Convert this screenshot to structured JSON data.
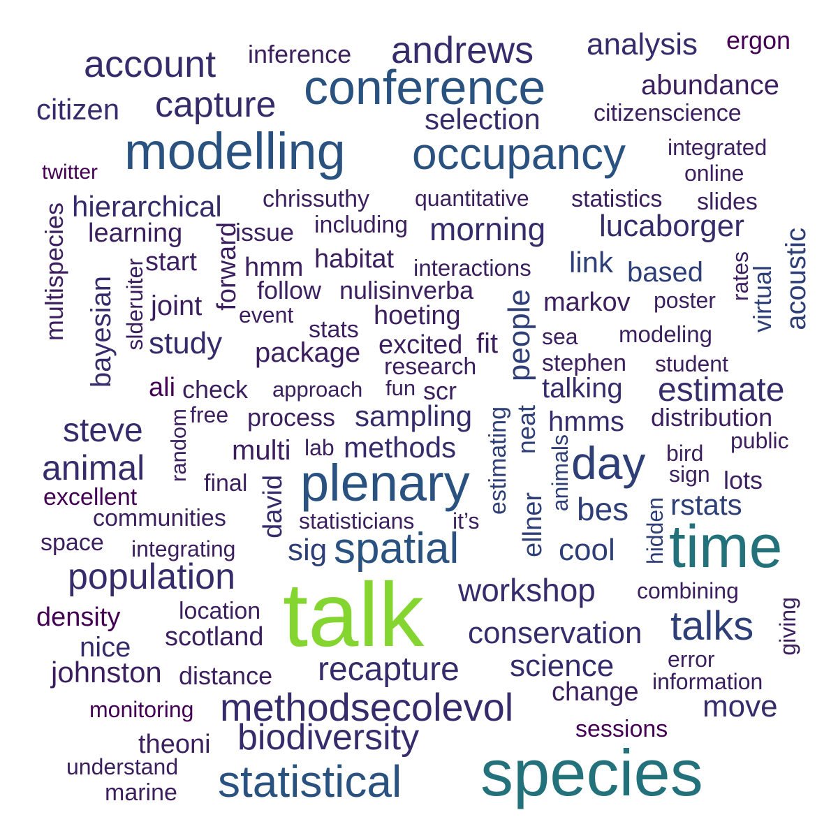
{
  "colors": {
    "background": "#ffffff",
    "c1": "#440154",
    "c2": "#3b1f5e",
    "c3": "#362c6b",
    "c4": "#2e3e77",
    "c5": "#2a5280",
    "c6": "#23727b",
    "c7": "#84d530"
  },
  "words": [
    "talk",
    "species",
    "time",
    "plenary",
    "modelling",
    "conference",
    "occupancy",
    "spatial",
    "statistical",
    "day",
    "methodsecolevol",
    "population",
    "biodiversity",
    "andrews",
    "account",
    "capture",
    "recapture",
    "talks",
    "animal",
    "estimate",
    "workshop",
    "conservation",
    "lucaborger",
    "morning",
    "steve",
    "hierarchical",
    "science",
    "johnston",
    "analysis",
    "abundance",
    "selection",
    "citizen",
    "sampling",
    "methods",
    "study",
    "cool",
    "bes",
    "rstats",
    "hmms",
    "talking",
    "package",
    "move",
    "people",
    "inference",
    "ergon",
    "citizenscience",
    "integrated",
    "online",
    "twitter",
    "chrissuthy",
    "quantitative",
    "statistics",
    "slides",
    "learning",
    "issue",
    "including",
    "multispecies",
    "acoustic",
    "link",
    "based",
    "habitat",
    "hmm",
    "start",
    "interactions",
    "rates",
    "virtual",
    "bayesian",
    "slderuiter",
    "forward",
    "follow",
    "nulisinverba",
    "markov",
    "poster",
    "joint",
    "event",
    "hoeting",
    "stats",
    "sea",
    "modeling",
    "excited",
    "fit",
    "research",
    "stephen",
    "student",
    "ali",
    "check",
    "approach",
    "fun",
    "scr",
    "free",
    "process",
    "distribution",
    "random",
    "estimating",
    "neat",
    "multi",
    "lab",
    "public",
    "animals",
    "bird",
    "sign",
    "lots",
    "final",
    "david",
    "excellent",
    "ellner",
    "hidden",
    "communities",
    "statisticians",
    "it’s",
    "space",
    "integrating",
    "sig",
    "location",
    "combining",
    "density",
    "scotland",
    "nice",
    "giving",
    "error",
    "distance",
    "information",
    "change",
    "monitoring",
    "sessions",
    "theoni",
    "understand",
    "marine"
  ]
}
